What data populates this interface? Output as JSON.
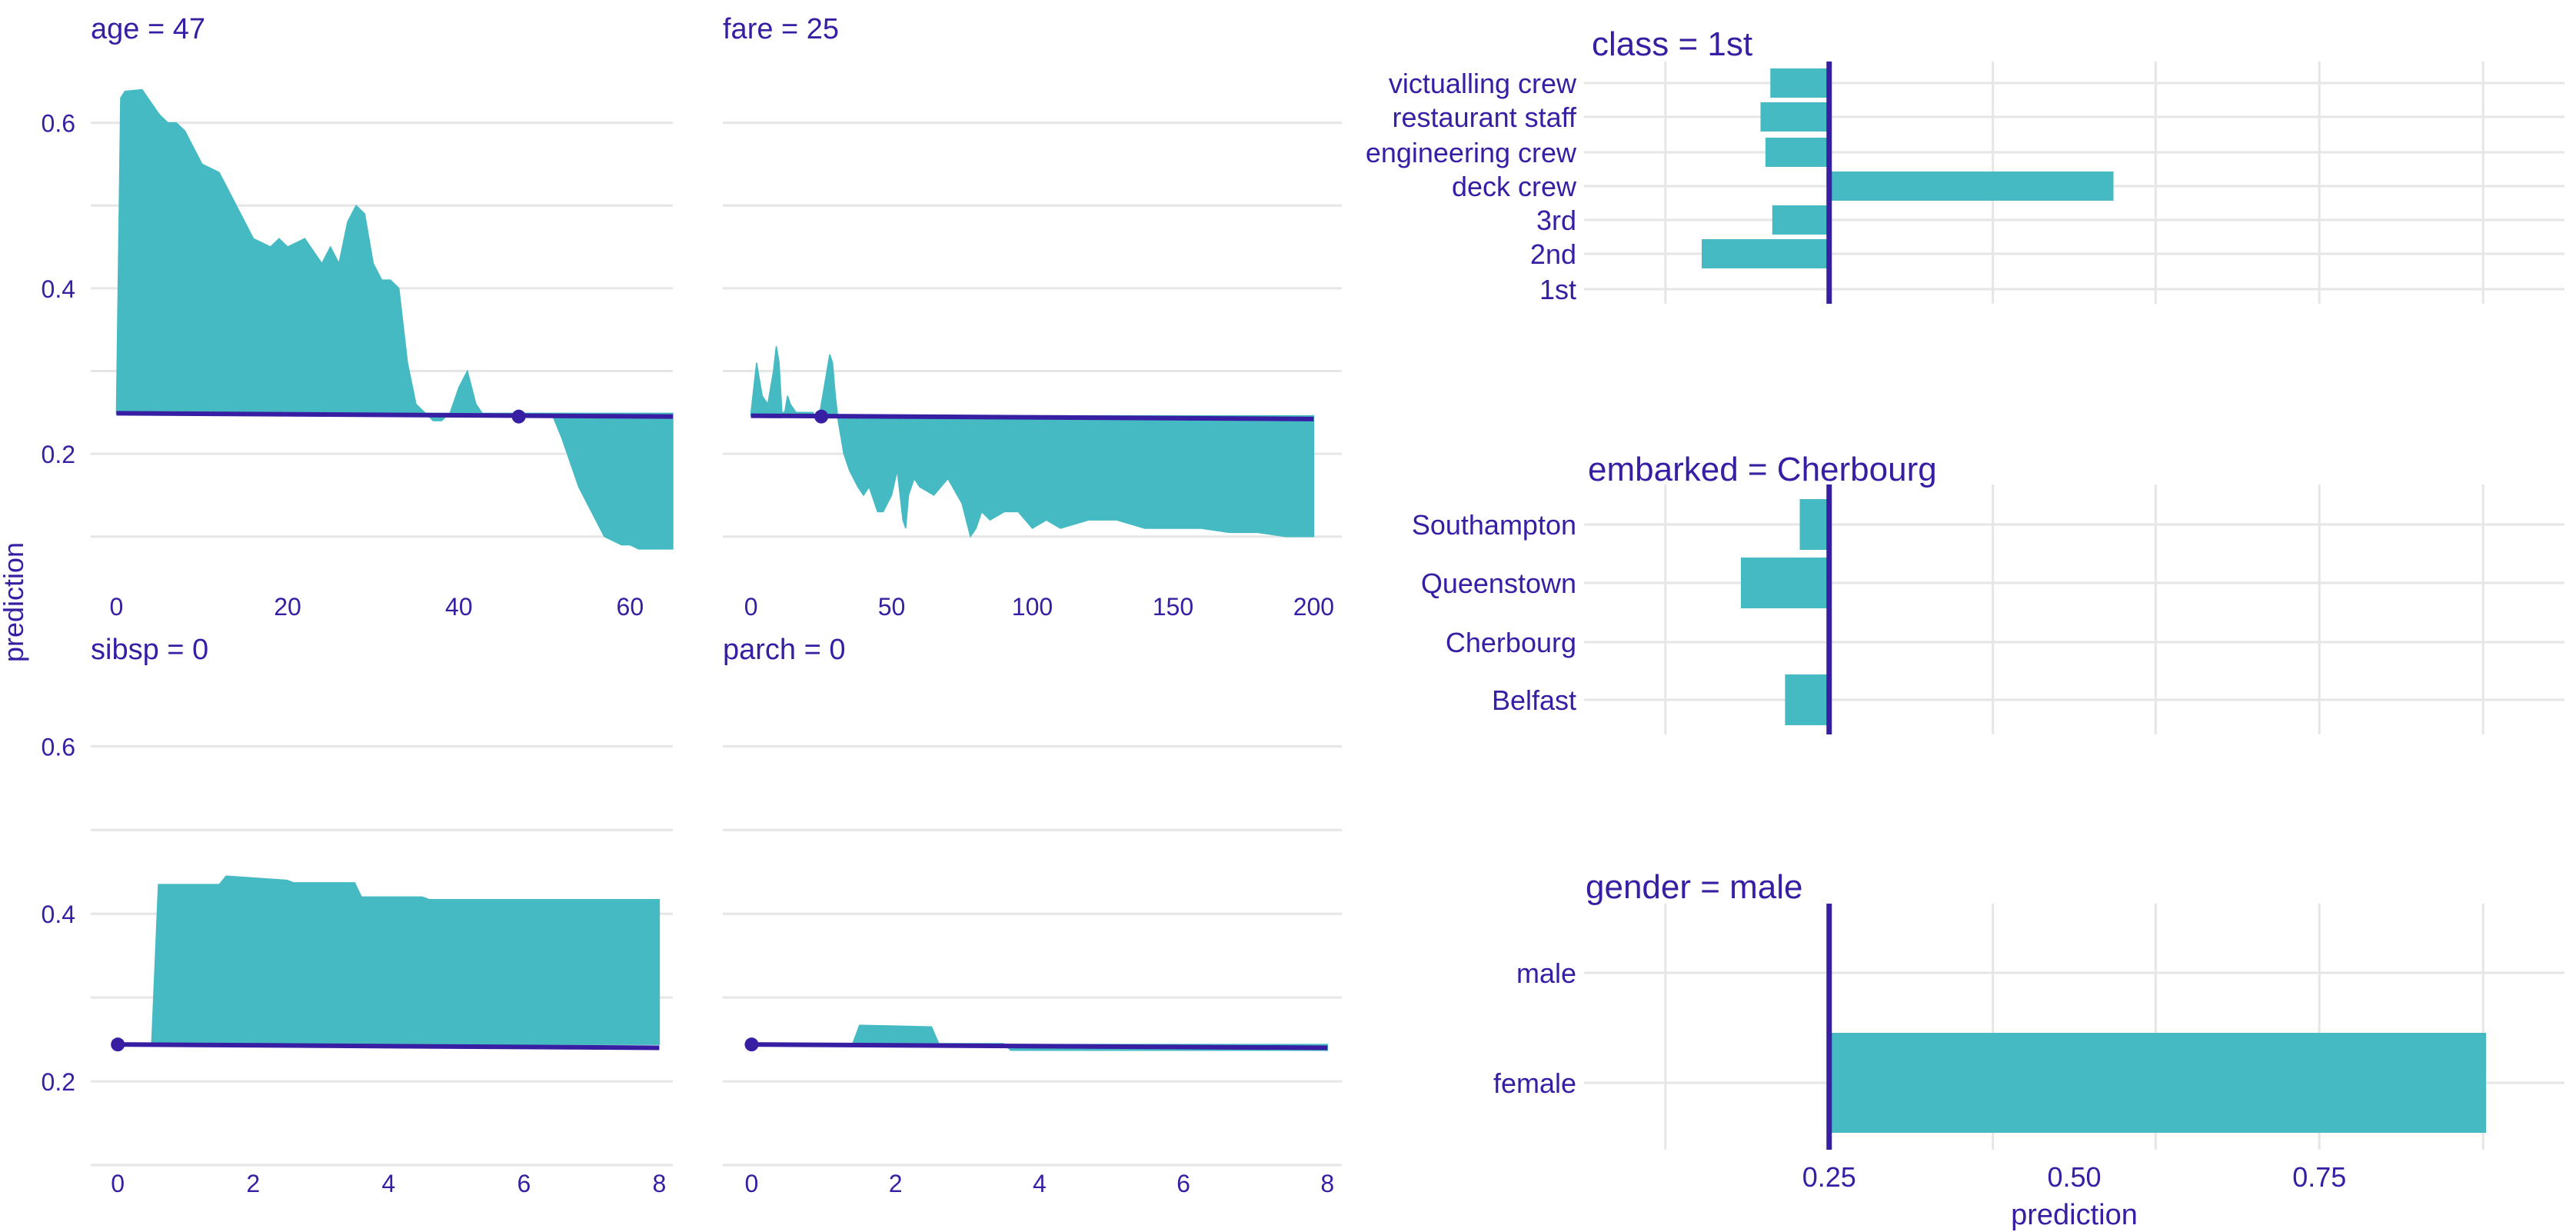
{
  "colors": {
    "accent": "#371ea3",
    "fill": "#46bac2",
    "grid": "#e6e6e6",
    "background": "#ffffff"
  },
  "shared_ylabel": "prediction",
  "chart_data": [
    {
      "type": "area",
      "title": "age = 47",
      "baseline_prediction": 0.249,
      "observation": {
        "x": 47,
        "y": 0.245
      },
      "xlim": [
        -3,
        65
      ],
      "ylim": [
        0.07,
        0.66
      ],
      "x_ticks": [
        0,
        20,
        40,
        60
      ],
      "y_ticks": [
        0.2,
        0.4,
        0.6
      ],
      "x": [
        0,
        0.5,
        1,
        3,
        5,
        6,
        7,
        8,
        9,
        10,
        12,
        14,
        15,
        16,
        18,
        19,
        20,
        22,
        24,
        25,
        26,
        27,
        28,
        29,
        30,
        31,
        32,
        33,
        34,
        35,
        36,
        37,
        38,
        39,
        40,
        41,
        42,
        43,
        44,
        45,
        46,
        47,
        48,
        49,
        50,
        51,
        52,
        53,
        54,
        55,
        56,
        57,
        58,
        59,
        60,
        61,
        62,
        63,
        64,
        65
      ],
      "y": [
        0.249,
        0.63,
        0.638,
        0.64,
        0.61,
        0.6,
        0.6,
        0.59,
        0.57,
        0.55,
        0.54,
        0.5,
        0.48,
        0.46,
        0.45,
        0.46,
        0.45,
        0.46,
        0.43,
        0.45,
        0.43,
        0.48,
        0.5,
        0.49,
        0.43,
        0.41,
        0.41,
        0.4,
        0.31,
        0.26,
        0.25,
        0.24,
        0.24,
        0.25,
        0.28,
        0.3,
        0.26,
        0.245,
        0.245,
        0.245,
        0.245,
        0.245,
        0.245,
        0.245,
        0.245,
        0.245,
        0.22,
        0.19,
        0.16,
        0.14,
        0.12,
        0.1,
        0.095,
        0.09,
        0.09,
        0.085,
        0.085,
        0.085,
        0.085,
        0.085
      ]
    },
    {
      "type": "area",
      "title": "fare = 25",
      "baseline_prediction": 0.246,
      "observation": {
        "x": 25,
        "y": 0.245
      },
      "xlim": [
        -10,
        210
      ],
      "ylim": [
        0.07,
        0.66
      ],
      "x_ticks": [
        0,
        50,
        100,
        150,
        200
      ],
      "y_ticks": [
        0.2,
        0.4,
        0.6
      ],
      "x": [
        0,
        2,
        4,
        6,
        8,
        9,
        10,
        11,
        12,
        13,
        14,
        16,
        18,
        20,
        22,
        24,
        26,
        28,
        29,
        30,
        31,
        32,
        33,
        35,
        38,
        40,
        42,
        45,
        47,
        50,
        52,
        54,
        55,
        56,
        58,
        60,
        65,
        70,
        75,
        78,
        80,
        82,
        85,
        90,
        95,
        100,
        105,
        110,
        120,
        130,
        140,
        150,
        160,
        170,
        180,
        190,
        200
      ],
      "y": [
        0.249,
        0.31,
        0.27,
        0.26,
        0.3,
        0.33,
        0.31,
        0.25,
        0.25,
        0.27,
        0.26,
        0.25,
        0.25,
        0.25,
        0.25,
        0.24,
        0.28,
        0.32,
        0.31,
        0.27,
        0.24,
        0.22,
        0.2,
        0.18,
        0.16,
        0.15,
        0.16,
        0.13,
        0.13,
        0.15,
        0.18,
        0.12,
        0.11,
        0.15,
        0.17,
        0.16,
        0.15,
        0.17,
        0.14,
        0.1,
        0.11,
        0.13,
        0.12,
        0.13,
        0.13,
        0.11,
        0.12,
        0.11,
        0.12,
        0.12,
        0.11,
        0.11,
        0.11,
        0.105,
        0.105,
        0.1,
        0.1
      ]
    },
    {
      "type": "area",
      "title": "sibsp = 0",
      "baseline_prediction": 0.244,
      "observation": {
        "x": 0,
        "y": 0.244
      },
      "xlim": [
        -0.4,
        8.2
      ],
      "ylim": [
        0.1,
        0.66
      ],
      "x_ticks": [
        0,
        2,
        4,
        6,
        8
      ],
      "y_ticks": [
        0.2,
        0.4,
        0.6
      ],
      "x": [
        0,
        0.5,
        0.6,
        1.5,
        1.6,
        2.5,
        2.6,
        3.5,
        3.6,
        4.5,
        4.6,
        8
      ],
      "y": [
        0.244,
        0.244,
        0.435,
        0.435,
        0.445,
        0.44,
        0.437,
        0.437,
        0.42,
        0.42,
        0.417,
        0.417
      ]
    },
    {
      "type": "area",
      "title": "parch = 0",
      "baseline_prediction": 0.244,
      "observation": {
        "x": 0,
        "y": 0.244
      },
      "xlim": [
        -0.4,
        8.2
      ],
      "ylim": [
        0.1,
        0.66
      ],
      "x_ticks": [
        0,
        2,
        4,
        6,
        8
      ],
      "y_ticks": [
        0.2,
        0.4,
        0.6
      ],
      "x": [
        0,
        1.4,
        1.5,
        2.5,
        2.6,
        3.5,
        3.6,
        8
      ],
      "y": [
        0.244,
        0.244,
        0.267,
        0.265,
        0.245,
        0.245,
        0.237,
        0.237
      ]
    },
    {
      "type": "bar",
      "orientation": "horizontal",
      "title": "class = 1st",
      "baseline_prediction": 0.25,
      "categories": [
        "victualling crew",
        "restaurant staff",
        "engineering crew",
        "deck crew",
        "3rd",
        "2nd",
        "1st"
      ],
      "values": [
        0.19,
        0.18,
        0.185,
        0.54,
        0.192,
        0.12,
        0.25
      ]
    },
    {
      "type": "bar",
      "orientation": "horizontal",
      "title": "embarked = Cherbourg",
      "baseline_prediction": 0.25,
      "categories": [
        "Southampton",
        "Queenstown",
        "Cherbourg",
        "Belfast"
      ],
      "values": [
        0.22,
        0.16,
        0.25,
        0.205
      ]
    },
    {
      "type": "bar",
      "orientation": "horizontal",
      "title": "gender = male",
      "baseline_prediction": 0.25,
      "categories": [
        "male",
        "female"
      ],
      "values": [
        0.25,
        0.92
      ]
    }
  ],
  "bar_axis": {
    "xlabel": "prediction",
    "xlim": [
      0.0,
      1.0
    ],
    "x_ticks": [
      0.25,
      0.5,
      0.75
    ],
    "x_tick_labels": [
      "0.25",
      "0.50",
      "0.75"
    ]
  }
}
